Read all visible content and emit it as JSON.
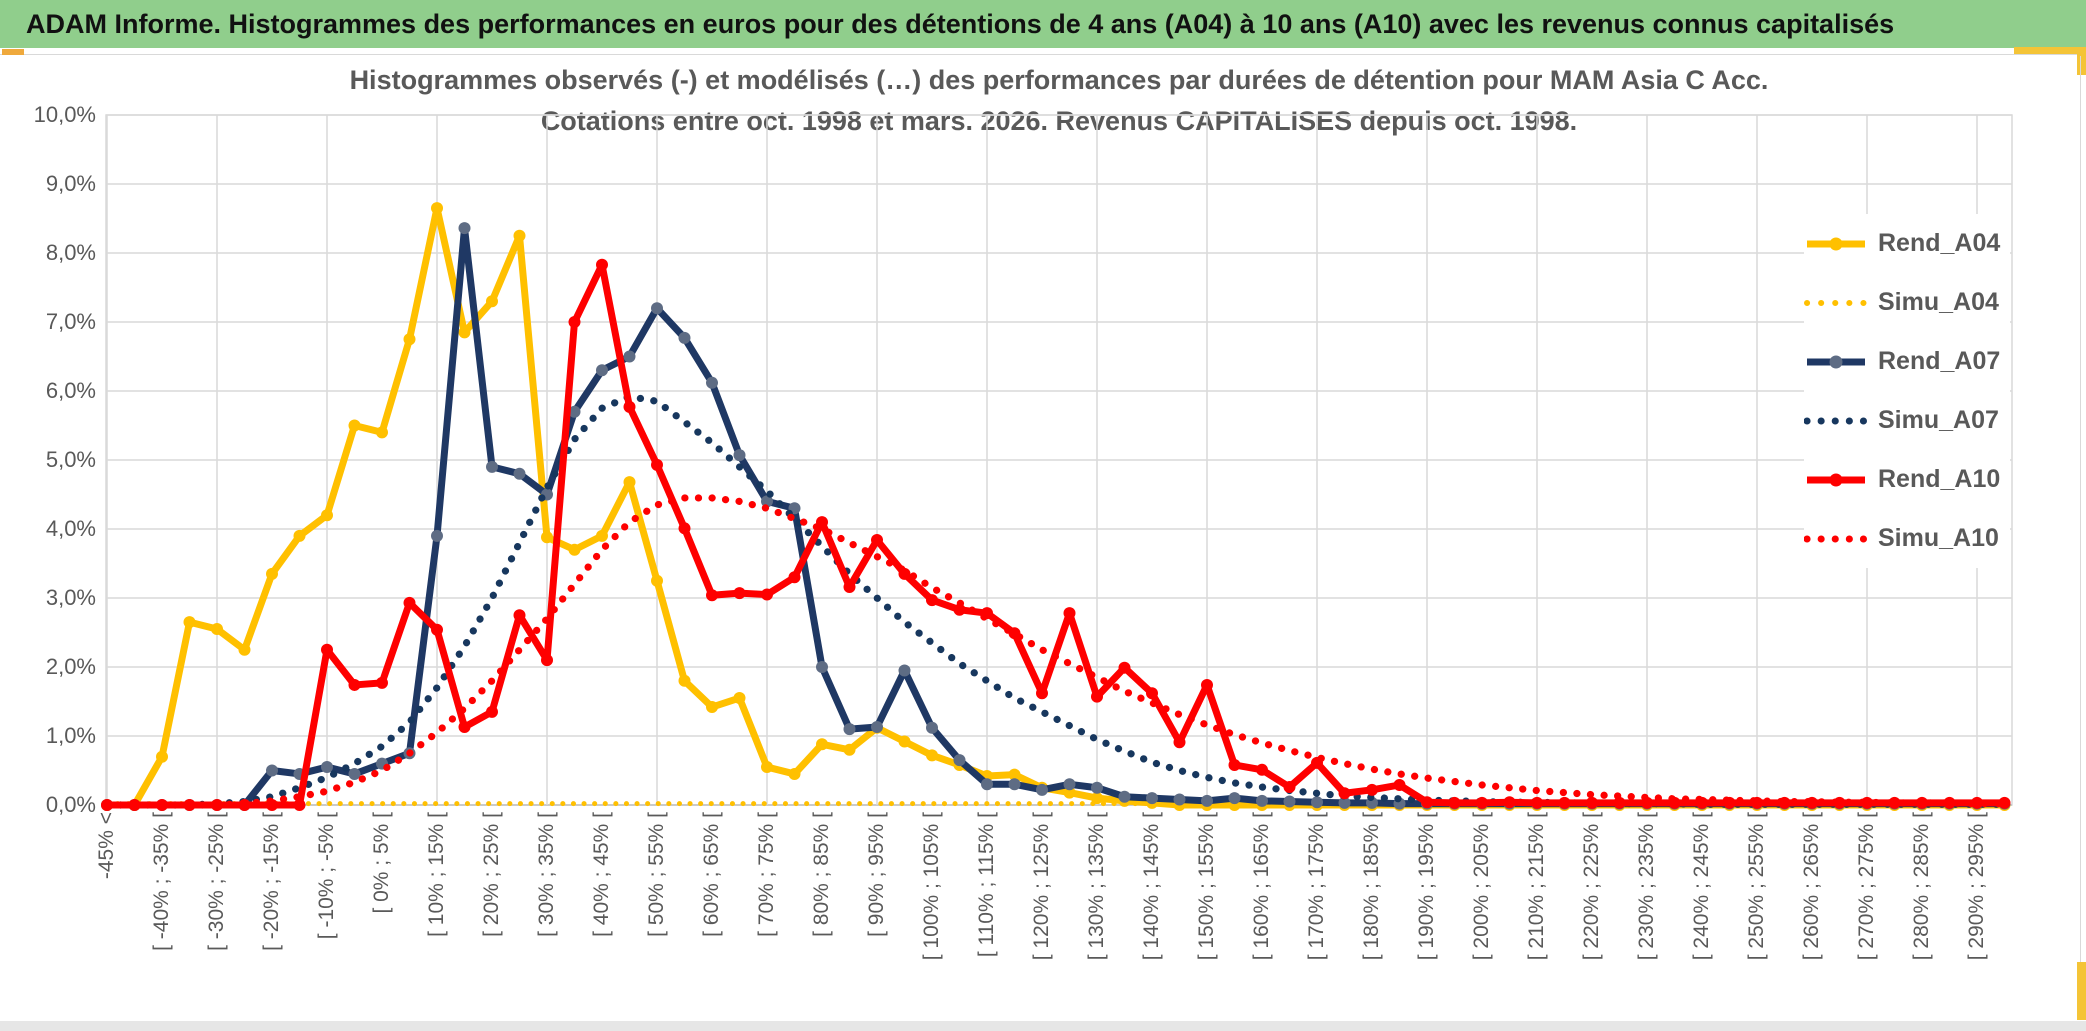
{
  "header": {
    "title": "ADAM Informe. Histogrammes des performances en euros pour des détentions de 4 ans (A04) à 10 ans (A10) avec les revenus connus capitalisés"
  },
  "chart_title": {
    "line1": "Histogrammes observés (-) et modélisés (…) des performances par durées de détention pour MAM Asia C Acc.",
    "line2": "Cotations entre oct. 1998 et mars. 2026. Revenus CAPITALISES depuis oct. 1998."
  },
  "colors": {
    "header_green": "#90CE8C",
    "accent_yellow": "#F4C437",
    "gold": "#FFC000",
    "navy": "#1F3864",
    "navy_marker": "#5E6C84",
    "red": "#FE0000",
    "grid": "#D9D9D9",
    "axis": "#BFBFBF",
    "text_gray": "#595959"
  },
  "chart_data": {
    "type": "line",
    "title": "Histogrammes observés (-) et modélisés (…) des performances par durées de détention pour MAM Asia C Acc.",
    "subtitle": "Cotations entre oct. 1998 et mars. 2026. Revenus CAPITALISES depuis oct. 1998.",
    "legend_position": "right",
    "grid": true,
    "ylim": [
      0,
      10
    ],
    "y_axis": {
      "tick_labels": [
        "10,0%",
        "9,0%",
        "8,0%",
        "7,0%",
        "6,0%",
        "5,0%",
        "4,0%",
        "3,0%",
        "2,0%",
        "1,0%",
        "0,0%"
      ],
      "tick_values": [
        10,
        9,
        8,
        7,
        6,
        5,
        4,
        3,
        2,
        1,
        0
      ]
    },
    "x_axis": {
      "total_bins": 70,
      "label_every_n_bins": 2,
      "vertical_grid_every_n_bins": 4,
      "visible_labels": [
        "-45% <",
        "[ -40% ; -35% [",
        "[ -30% ; -25% [",
        "[ -20% ; -15% [",
        "[ -10% ; -5% [",
        "[ 0% ; 5% [",
        "[ 10% ; 15% [",
        "[ 20% ; 25% [",
        "[ 30% ; 35% [",
        "[ 40% ; 45% [",
        "[ 50% ; 55% [",
        "[ 60% ; 65% [",
        "[ 70% ; 75% [",
        "[ 80% ; 85% [",
        "[ 90% ; 95% [",
        "[ 100% ; 105% [",
        "[ 110% ; 115% [",
        "[ 120% ; 125% [",
        "[ 130% ; 135% [",
        "[ 140% ; 145% [",
        "[ 150% ; 155% [",
        "[ 160% ; 165% [",
        "[ 170% ; 175% [",
        "[ 180% ; 185% [",
        "[ 190% ; 195% [",
        "[ 200% ; 205% [",
        "[ 210% ; 215% [",
        "[ 220% ; 225% [",
        "[ 230% ; 235% [",
        "[ 240% ; 245% [",
        "[ 250% ; 255% [",
        "[ 260% ; 265% [",
        "[ 270% ; 275% [",
        "[ 280% ; 285% [",
        "[ 290% ; 295% ["
      ]
    },
    "series": [
      {
        "name": "Rend_A04",
        "style": "solid",
        "color": "#FFC000",
        "marker_color": "#FFC000",
        "values": [
          0,
          0,
          0.7,
          2.65,
          2.55,
          2.25,
          3.35,
          3.9,
          4.2,
          5.5,
          5.4,
          6.75,
          8.65,
          6.85,
          7.3,
          8.25,
          3.88,
          3.7,
          3.9,
          4.68,
          3.25,
          1.8,
          1.42,
          1.55,
          0.55,
          0.45,
          0.88,
          0.8,
          1.12,
          0.92,
          0.72,
          0.58,
          0.42,
          0.44,
          0.25,
          0.18,
          0.1,
          0.06,
          0.03,
          0,
          0,
          0,
          0,
          0,
          0,
          0,
          0,
          0,
          0,
          0,
          0,
          0,
          0,
          0,
          0,
          0,
          0,
          0,
          0,
          0,
          0,
          0,
          0,
          0,
          0,
          0,
          0,
          0,
          0,
          0
        ]
      },
      {
        "name": "Simu_A04",
        "style": "dotted",
        "color": "#FFC000",
        "values": [
          0.02,
          0.02,
          0.02,
          0.02,
          0.02,
          0.02,
          0.02,
          0.02,
          0.02,
          0.02,
          0.02,
          0.02,
          0.02,
          0.02,
          0.02,
          0.02,
          0.02,
          0.02,
          0.02,
          0.02,
          0.02,
          0.02,
          0.02,
          0.02,
          0.02,
          0.02,
          0.02,
          0.02,
          0.02,
          0.02,
          0.02,
          0.02,
          0.02,
          0.02,
          0.02,
          0.02,
          0.02,
          0.02,
          0.02,
          0.02,
          0.02,
          0.02,
          0.02,
          0.02,
          0.02,
          0.02,
          0.02,
          0.02,
          0.02,
          0.02,
          0.02,
          0.02,
          0.02,
          0.02,
          0.02,
          0.02,
          0.02,
          0.02,
          0.02,
          0.02,
          0.02,
          0.02,
          0.02,
          0.02,
          0.02,
          0.02,
          0.02,
          0.02,
          0.02,
          0.02
        ]
      },
      {
        "name": "Rend_A07",
        "style": "solid",
        "color": "#1F3864",
        "marker_color": "#5E6C84",
        "values": [
          0,
          0,
          0,
          0,
          0,
          0,
          0.5,
          0.45,
          0.55,
          0.45,
          0.6,
          0.75,
          3.9,
          8.36,
          4.9,
          4.8,
          4.5,
          5.7,
          6.3,
          6.5,
          7.2,
          6.77,
          6.12,
          5.07,
          4.4,
          4.3,
          2.0,
          1.1,
          1.13,
          1.95,
          1.12,
          0.65,
          0.3,
          0.3,
          0.22,
          0.3,
          0.25,
          0.12,
          0.1,
          0.08,
          0.06,
          0.1,
          0.06,
          0.05,
          0.04,
          0.03,
          0.03,
          0.02,
          0.02,
          0.02,
          0.02,
          0.02,
          0.02,
          0.02,
          0.02,
          0.02,
          0.02,
          0.02,
          0.02,
          0.02,
          0.02,
          0.02,
          0.02,
          0.02,
          0.02,
          0.02,
          0.02,
          0.02,
          0.02,
          0.02
        ]
      },
      {
        "name": "Simu_A07",
        "style": "dotted",
        "color": "#17375E",
        "values": [
          0,
          0,
          0,
          0,
          0.02,
          0.05,
          0.12,
          0.25,
          0.4,
          0.6,
          0.85,
          1.2,
          1.7,
          2.3,
          3.0,
          3.8,
          4.6,
          5.3,
          5.75,
          5.92,
          5.85,
          5.55,
          5.25,
          4.9,
          4.55,
          4.15,
          3.75,
          3.35,
          3.0,
          2.65,
          2.35,
          2.05,
          1.8,
          1.55,
          1.35,
          1.15,
          0.95,
          0.78,
          0.62,
          0.5,
          0.4,
          0.32,
          0.26,
          0.21,
          0.17,
          0.13,
          0.11,
          0.09,
          0.07,
          0.06,
          0.05,
          0.04,
          0.04,
          0.03,
          0.03,
          0.02,
          0.02,
          0.02,
          0.01,
          0.01,
          0.01,
          0.01,
          0.01,
          0.01,
          0.01,
          0.01,
          0.01,
          0.01,
          0.01,
          0.01
        ]
      },
      {
        "name": "Rend_A10",
        "style": "solid",
        "color": "#FE0000",
        "marker_color": "#FE0000",
        "values": [
          0,
          0,
          0,
          0,
          0,
          0,
          0,
          0,
          2.25,
          1.74,
          1.77,
          2.93,
          2.54,
          1.13,
          1.35,
          2.75,
          2.1,
          7.0,
          7.83,
          5.77,
          4.93,
          4.01,
          3.04,
          3.07,
          3.05,
          3.3,
          4.1,
          3.16,
          3.84,
          3.35,
          2.97,
          2.83,
          2.78,
          2.49,
          1.62,
          2.78,
          1.57,
          1.99,
          1.62,
          0.91,
          1.74,
          0.58,
          0.51,
          0.26,
          0.61,
          0.17,
          0.22,
          0.29,
          0.04,
          0.03,
          0.03,
          0.04,
          0.03,
          0.03,
          0.03,
          0.03,
          0.03,
          0.03,
          0.03,
          0.03,
          0.03,
          0.03,
          0.03,
          0.03,
          0.03,
          0.03,
          0.03,
          0.03,
          0.03,
          0.03
        ]
      },
      {
        "name": "Simu_A10",
        "style": "dotted",
        "color": "#FE0000",
        "values": [
          0,
          0,
          0,
          0,
          0,
          0.02,
          0.06,
          0.12,
          0.2,
          0.33,
          0.5,
          0.75,
          1.05,
          1.4,
          1.8,
          2.25,
          2.7,
          3.2,
          3.7,
          4.1,
          4.35,
          4.45,
          4.45,
          4.4,
          4.3,
          4.15,
          4.0,
          3.8,
          3.6,
          3.4,
          3.15,
          2.93,
          2.7,
          2.48,
          2.25,
          2.05,
          1.85,
          1.65,
          1.48,
          1.31,
          1.16,
          1.02,
          0.9,
          0.79,
          0.69,
          0.6,
          0.52,
          0.45,
          0.39,
          0.34,
          0.29,
          0.25,
          0.21,
          0.18,
          0.15,
          0.13,
          0.11,
          0.09,
          0.08,
          0.07,
          0.06,
          0.05,
          0.05,
          0.04,
          0.04,
          0.03,
          0.03,
          0.03,
          0.02,
          0.02
        ]
      }
    ]
  }
}
